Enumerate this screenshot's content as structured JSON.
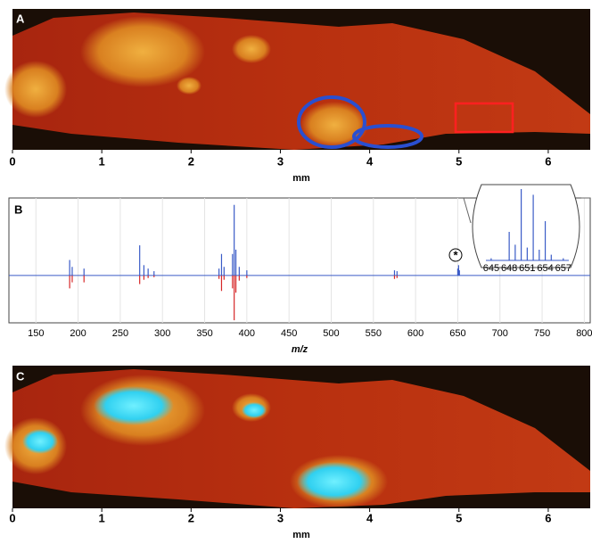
{
  "chart_data": [
    {
      "type": "image",
      "label": "A",
      "xlabel": "mm",
      "xlim": [
        0,
        6.47
      ],
      "xticks": [
        0,
        1,
        2,
        3,
        4,
        5,
        6
      ]
    },
    {
      "type": "spectrum",
      "label": "B",
      "xlabel": "m/z",
      "xlim": [
        118,
        807
      ],
      "ylim": [
        -55,
        90
      ],
      "grid": true,
      "xticks": [
        150,
        200,
        250,
        300,
        350,
        400,
        450,
        500,
        550,
        600,
        650,
        700,
        750,
        800
      ],
      "x": [
        190,
        193,
        207,
        273,
        278,
        283,
        290,
        367,
        370,
        373,
        383,
        385,
        387,
        391,
        400,
        575,
        578,
        650,
        651,
        652
      ],
      "series": [
        {
          "color": "#3a5bc7",
          "values": [
            18,
            10,
            8,
            35,
            12,
            8,
            5,
            8,
            25,
            10,
            25,
            82,
            30,
            10,
            6,
            6,
            5,
            8,
            12,
            6
          ]
        },
        {
          "color": "#d62728",
          "values": [
            -15,
            -8,
            -8,
            -10,
            -5,
            -3,
            -2,
            -4,
            -18,
            -5,
            -15,
            -52,
            -20,
            -6,
            -3,
            -4,
            -3,
            0,
            0,
            0
          ]
        }
      ],
      "annotation": "*",
      "inset": {
        "xlim": [
          641.6,
          660
        ],
        "ylim": [
          0,
          100
        ],
        "xticks": [
          645,
          648,
          651,
          654,
          657
        ],
        "color": "#3a5bc7",
        "x": [
          645,
          648,
          649,
          650,
          651,
          652,
          653,
          654,
          655,
          657
        ],
        "values": [
          3,
          40,
          22,
          100,
          18,
          92,
          15,
          55,
          8,
          3
        ]
      }
    },
    {
      "type": "image",
      "label": "C",
      "xlabel": "mm",
      "xlim": [
        0,
        6.47
      ],
      "xticks": [
        0,
        1,
        2,
        3,
        4,
        5,
        6
      ]
    }
  ]
}
